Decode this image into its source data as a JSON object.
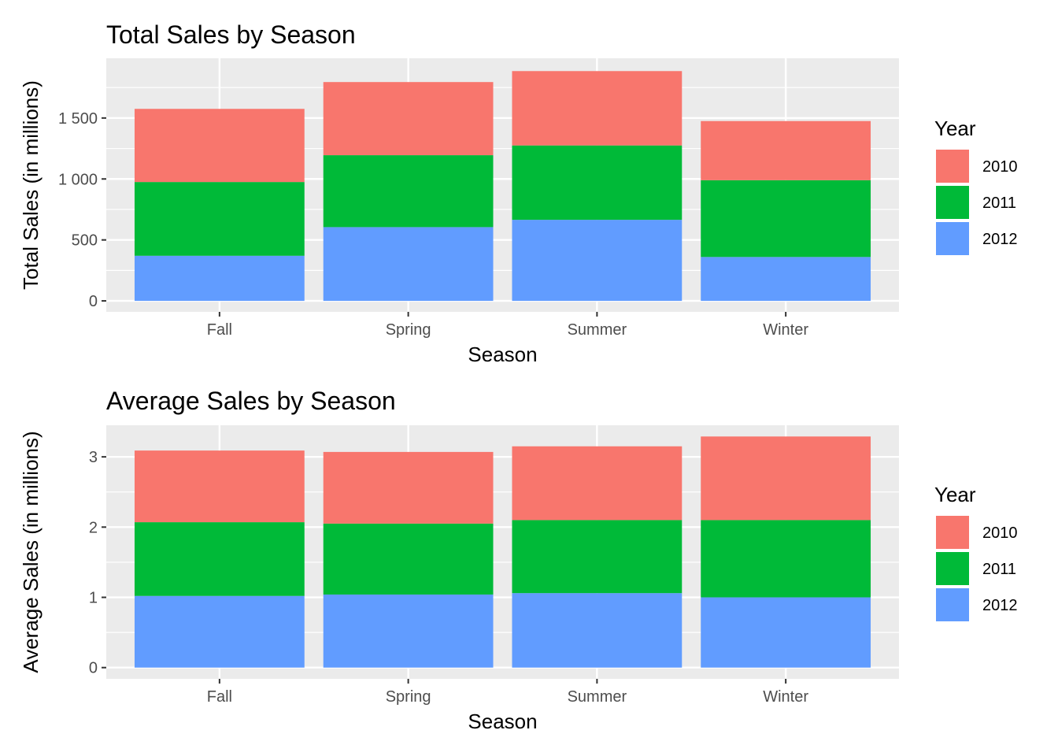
{
  "colors": {
    "2010": "#F8766D",
    "2011": "#00BA38",
    "2012": "#619CFF",
    "panel": "#EBEBEB",
    "grid": "#FFFFFF"
  },
  "chart_data": [
    {
      "type": "bar",
      "stacked": true,
      "title": "Total Sales by Season",
      "xlabel": "Season",
      "ylabel": "Total Sales (in millions)",
      "categories": [
        "Fall",
        "Spring",
        "Summer",
        "Winter"
      ],
      "series": [
        {
          "name": "2012",
          "values": [
            370,
            605,
            665,
            360
          ]
        },
        {
          "name": "2011",
          "values": [
            605,
            590,
            610,
            630
          ]
        },
        {
          "name": "2010",
          "values": [
            600,
            600,
            610,
            485
          ]
        }
      ],
      "ylim": [
        -90,
        1990
      ],
      "yticks": [
        0,
        500,
        1000,
        1500
      ],
      "ytick_labels": [
        "0",
        "500",
        "1 000",
        "1 500"
      ],
      "legend_title": "Year",
      "legend_entries": [
        "2010",
        "2011",
        "2012"
      ],
      "legend_position": "right",
      "grid": true
    },
    {
      "type": "bar",
      "stacked": true,
      "title": "Average Sales by Season",
      "xlabel": "Season",
      "ylabel": "Average Sales (in millions)",
      "categories": [
        "Fall",
        "Spring",
        "Summer",
        "Winter"
      ],
      "series": [
        {
          "name": "2012",
          "values": [
            1.02,
            1.04,
            1.06,
            1.0
          ]
        },
        {
          "name": "2011",
          "values": [
            1.05,
            1.01,
            1.04,
            1.1
          ]
        },
        {
          "name": "2010",
          "values": [
            1.02,
            1.02,
            1.05,
            1.19
          ]
        }
      ],
      "ylim": [
        -0.16,
        3.45
      ],
      "yticks": [
        0,
        1,
        2,
        3
      ],
      "ytick_labels": [
        "0",
        "1",
        "2",
        "3"
      ],
      "legend_title": "Year",
      "legend_entries": [
        "2010",
        "2011",
        "2012"
      ],
      "legend_position": "right",
      "grid": true
    }
  ]
}
